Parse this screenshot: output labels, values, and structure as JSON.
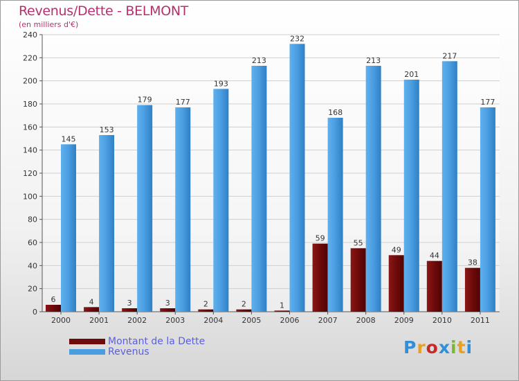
{
  "header": {
    "title": "Revenus/Dette - BELMONT",
    "subtitle": "(en milliers d'€)"
  },
  "legend": {
    "items": [
      {
        "label": "Montant de la Dette",
        "color": "#6e0a0a"
      },
      {
        "label": "Revenus",
        "color": "#4a9de0"
      }
    ]
  },
  "logo": {
    "text": "Proxiti",
    "letters": [
      {
        "ch": "P",
        "color": "#2f8fd8"
      },
      {
        "ch": "r",
        "color": "#e8a020"
      },
      {
        "ch": "o",
        "color": "#c82828"
      },
      {
        "ch": "x",
        "color": "#2f8fd8"
      },
      {
        "ch": "i",
        "color": "#7ab82f"
      },
      {
        "ch": "t",
        "color": "#e8a020"
      },
      {
        "ch": "i",
        "color": "#2f8fd8"
      }
    ]
  },
  "chart_data": {
    "type": "bar",
    "title": "Revenus/Dette - BELMONT",
    "ylabel": "(en milliers d'€)",
    "xlabel": "",
    "categories": [
      "2000",
      "2001",
      "2002",
      "2003",
      "2004",
      "2005",
      "2006",
      "2007",
      "2008",
      "2009",
      "2010",
      "2011"
    ],
    "series": [
      {
        "name": "Montant de la Dette",
        "color": "#6e0a0a",
        "values": [
          6,
          4,
          3,
          3,
          2,
          2,
          1,
          59,
          55,
          49,
          44,
          38
        ]
      },
      {
        "name": "Revenus",
        "color": "#4a9de0",
        "values": [
          145,
          153,
          179,
          177,
          193,
          213,
          232,
          168,
          213,
          201,
          217,
          177
        ]
      }
    ],
    "ylim": [
      0,
      240
    ],
    "yticks": [
      0,
      20,
      40,
      60,
      80,
      100,
      120,
      140,
      160,
      180,
      200,
      220,
      240
    ],
    "grid": true,
    "legend": "bottom-left"
  }
}
